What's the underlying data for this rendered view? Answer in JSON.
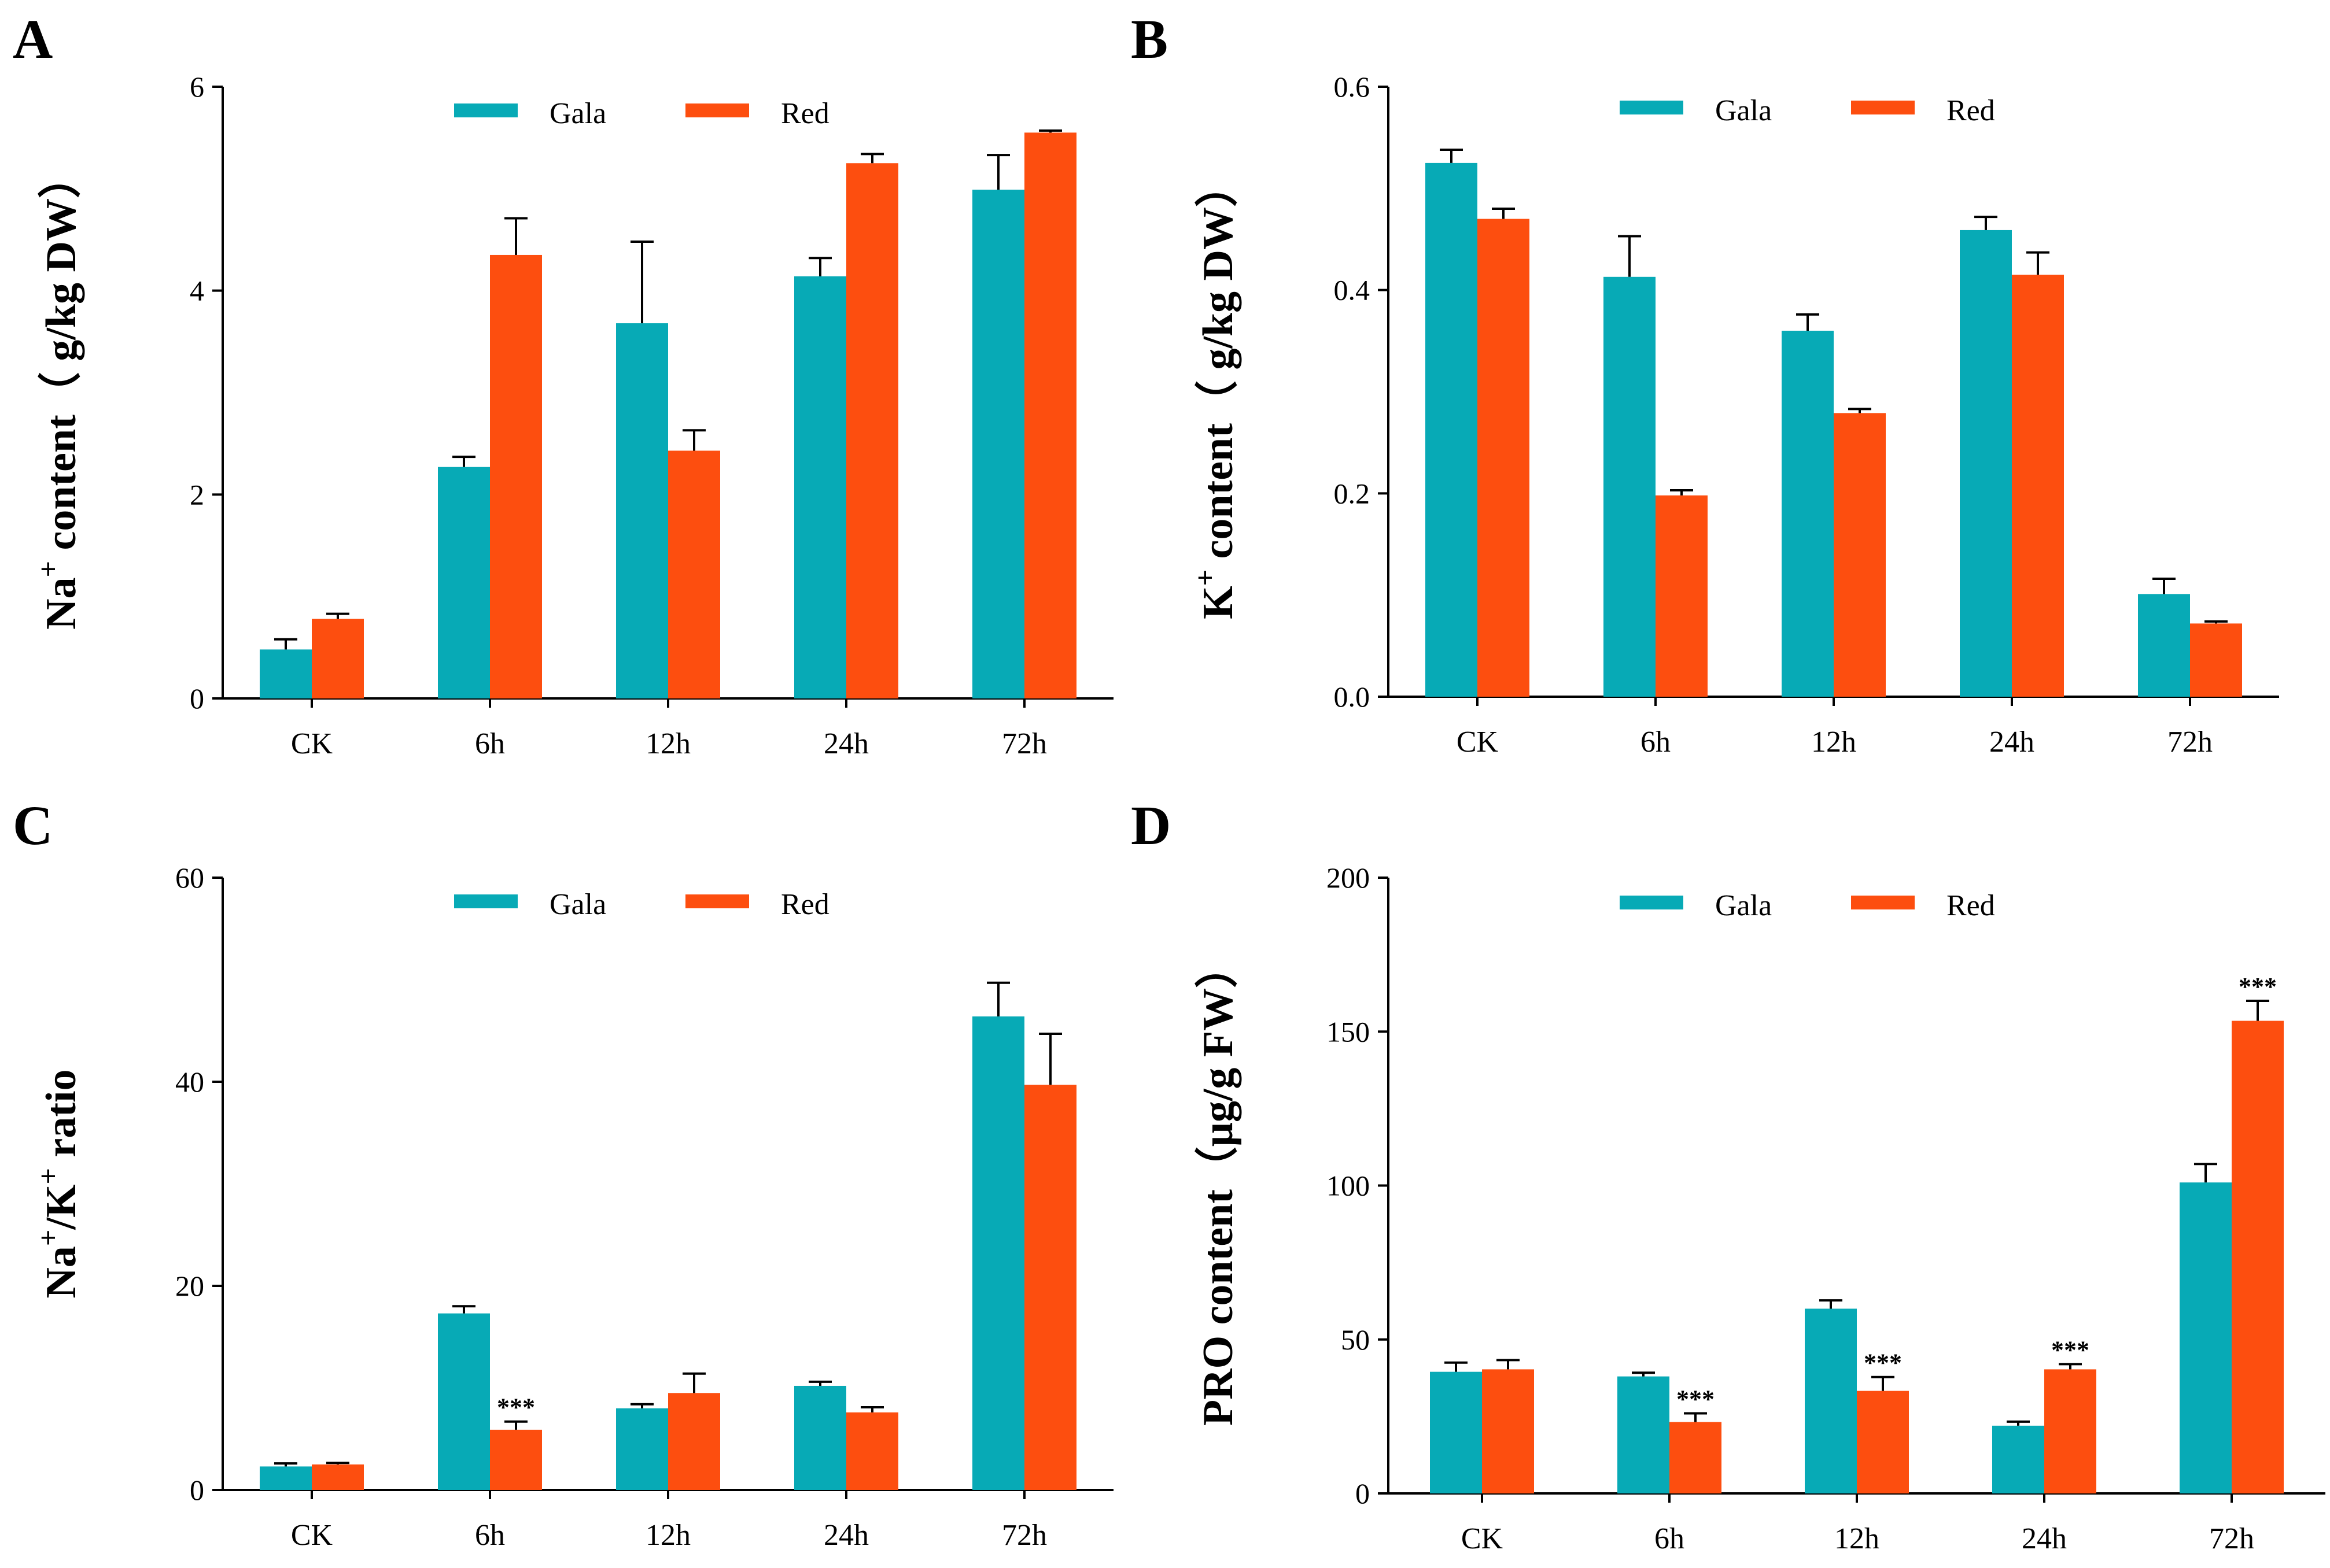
{
  "colors": {
    "gala": "#07aab6",
    "red": "#fd4e0f"
  },
  "chart_data": [
    {
      "type": "bar",
      "panel": "A",
      "ylabel_parts": [
        "Na",
        "+",
        " content（ g/kg DW）"
      ],
      "categories": [
        "CK",
        "6h",
        "12h",
        "24h",
        "72h"
      ],
      "ylim": [
        0,
        6
      ],
      "yticks": [
        0,
        2,
        4,
        6
      ],
      "ytick_labels": [
        "0",
        "2",
        "4",
        "6"
      ],
      "legend": [
        "Gala",
        "Red"
      ],
      "series": [
        {
          "name": "Gala",
          "values": [
            0.48,
            2.27,
            3.68,
            4.14,
            4.99
          ],
          "errors": [
            0.1,
            0.1,
            0.8,
            0.18,
            0.34
          ],
          "stars": [
            "",
            "",
            "",
            "",
            ""
          ]
        },
        {
          "name": "Red",
          "values": [
            0.78,
            4.35,
            2.43,
            5.25,
            5.55
          ],
          "errors": [
            0.05,
            0.36,
            0.2,
            0.09,
            0.02
          ],
          "stars": [
            "",
            "",
            "",
            "",
            ""
          ]
        }
      ]
    },
    {
      "type": "bar",
      "panel": "B",
      "ylabel_parts": [
        "K",
        "+",
        " content（ g/kg DW）"
      ],
      "categories": [
        "CK",
        "6h",
        "12h",
        "24h",
        "72h"
      ],
      "ylim": [
        0,
        0.6
      ],
      "yticks": [
        0,
        0.2,
        0.4,
        0.6
      ],
      "ytick_labels": [
        "0.0",
        "0.2",
        "0.4",
        "0.6"
      ],
      "legend": [
        "Gala",
        "Red"
      ],
      "series": [
        {
          "name": "Gala",
          "values": [
            0.525,
            0.413,
            0.36,
            0.459,
            0.101
          ],
          "errors": [
            0.013,
            0.04,
            0.016,
            0.013,
            0.015
          ],
          "stars": [
            "",
            "",
            "",
            "",
            ""
          ]
        },
        {
          "name": "Red",
          "values": [
            0.47,
            0.198,
            0.279,
            0.415,
            0.072
          ],
          "errors": [
            0.01,
            0.005,
            0.004,
            0.022,
            0.002
          ],
          "stars": [
            "",
            "",
            "",
            "",
            ""
          ]
        }
      ]
    },
    {
      "type": "bar",
      "panel": "C",
      "ylabel_parts": [
        "Na",
        "+",
        "/K",
        "+",
        " ratio"
      ],
      "categories": [
        "CK",
        "6h",
        "12h",
        "24h",
        "72h"
      ],
      "ylim": [
        0,
        60
      ],
      "yticks": [
        0,
        20,
        40,
        60
      ],
      "ytick_labels": [
        "0",
        "20",
        "40",
        "60"
      ],
      "legend": [
        "Gala",
        "Red"
      ],
      "series": [
        {
          "name": "Gala",
          "values": [
            2.3,
            17.3,
            8.0,
            10.2,
            46.4
          ],
          "errors": [
            0.3,
            0.7,
            0.4,
            0.4,
            3.3
          ],
          "stars": [
            "",
            "",
            "",
            "",
            ""
          ]
        },
        {
          "name": "Red",
          "values": [
            2.5,
            5.9,
            9.5,
            7.6,
            39.7
          ],
          "errors": [
            0.15,
            0.8,
            1.9,
            0.5,
            5.0
          ],
          "stars": [
            "",
            "***",
            "",
            "",
            ""
          ]
        }
      ]
    },
    {
      "type": "bar",
      "panel": "D",
      "ylabel_parts": [
        "PRO content（μg/g FW）"
      ],
      "categories": [
        "CK",
        "6h",
        "12h",
        "24h",
        "72h"
      ],
      "ylim": [
        0,
        200
      ],
      "yticks": [
        0,
        50,
        100,
        150,
        200
      ],
      "ytick_labels": [
        "0",
        "50",
        "100",
        "150",
        "200"
      ],
      "legend": [
        "Gala",
        "Red"
      ],
      "series": [
        {
          "name": "Gala",
          "values": [
            39.5,
            38.0,
            60.0,
            22.0,
            101.0
          ],
          "errors": [
            3.0,
            1.2,
            2.7,
            1.3,
            6.0
          ],
          "stars": [
            "",
            "",
            "",
            "",
            ""
          ]
        },
        {
          "name": "Red",
          "values": [
            40.3,
            23.2,
            33.3,
            40.3,
            153.5
          ],
          "errors": [
            3.0,
            2.8,
            4.5,
            1.7,
            6.5
          ],
          "stars": [
            "",
            "***",
            "***",
            "***",
            "***"
          ]
        }
      ]
    }
  ]
}
